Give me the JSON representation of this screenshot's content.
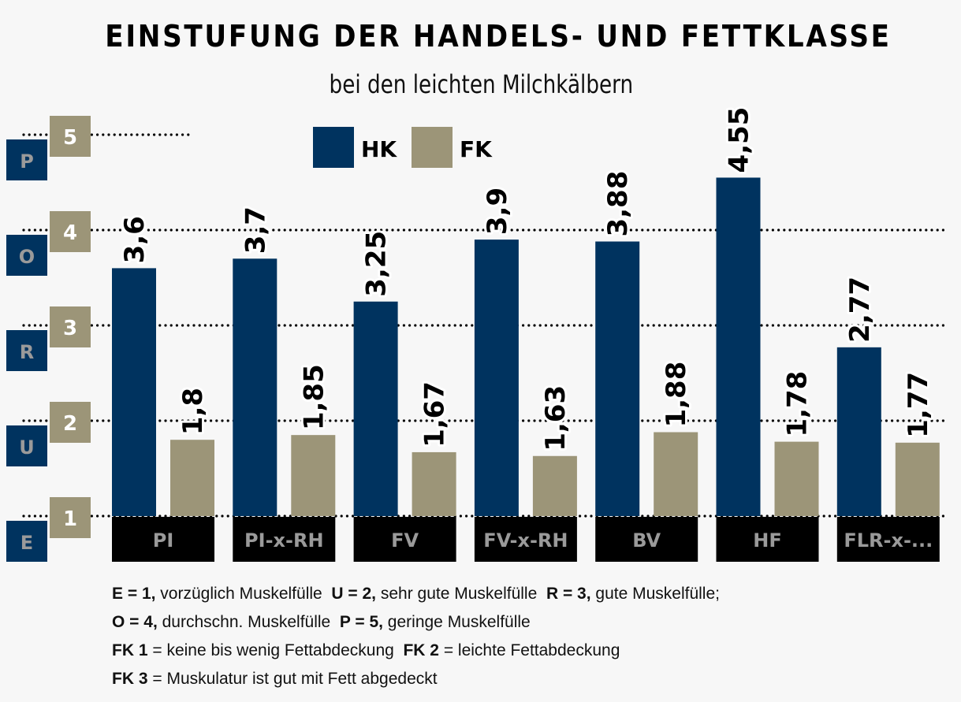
{
  "header": {
    "title": "EINSTUFUNG DER HANDELS- UND FETTKLASSE",
    "subtitle": "bei den leichten Milchkälbern"
  },
  "chart_data": {
    "type": "bar",
    "title": "EINSTUFUNG DER HANDELS- UND FETTKLASSE",
    "subtitle": "bei den leichten Milchkälbern",
    "categories": [
      "PI",
      "PI-x-RH",
      "FV",
      "FV-x-RH",
      "BV",
      "HF",
      "FLR-x-..."
    ],
    "series": [
      {
        "name": "HK",
        "color": "#00335f",
        "values": [
          3.6,
          3.7,
          3.25,
          3.9,
          3.88,
          4.55,
          2.77
        ],
        "labels": [
          "3,6",
          "3,7",
          "3,25",
          "3,9",
          "3,88",
          "4,55",
          "2,77"
        ]
      },
      {
        "name": "FK",
        "color": "#9c9578",
        "values": [
          1.8,
          1.85,
          1.67,
          1.63,
          1.88,
          1.78,
          1.77
        ],
        "labels": [
          "1,8",
          "1,85",
          "1,67",
          "1,63",
          "1,88",
          "1,78",
          "1,77"
        ]
      }
    ],
    "yticks": [
      1,
      2,
      3,
      4,
      5
    ],
    "ytick_grades": [
      "E",
      "U",
      "R",
      "O",
      "P"
    ],
    "ylim": [
      1,
      5
    ],
    "xlabel": "",
    "ylabel": "",
    "grid": "dotted horizontal",
    "legend": "top-center",
    "colors": {
      "hk": "#00335f",
      "fk": "#9c9578",
      "category_bg": "#000000",
      "category_text": "#9a9a9a",
      "background": "#f7f7f7"
    }
  },
  "notes": {
    "lines": [
      [
        {
          "b": "E = 1,",
          "t": " vorzüglich Muskelfülle  "
        },
        {
          "b": "U = 2,",
          "t": " sehr gute Muskelfülle  "
        },
        {
          "b": "R = 3,",
          "t": " gute Muskelfülle;"
        }
      ],
      [
        {
          "b": "O = 4,",
          "t": " durchschn. Muskelfülle  "
        },
        {
          "b": "P = 5,",
          "t": " geringe Muskelfülle"
        }
      ],
      [
        {
          "b": "FK 1",
          "t": " = keine bis wenig Fettabdeckung  "
        },
        {
          "b": "FK 2",
          "t": " = leichte Fettabdeckung"
        }
      ],
      [
        {
          "b": "FK 3",
          "t": " = Muskulatur ist gut mit Fett abgedeckt"
        }
      ]
    ]
  }
}
